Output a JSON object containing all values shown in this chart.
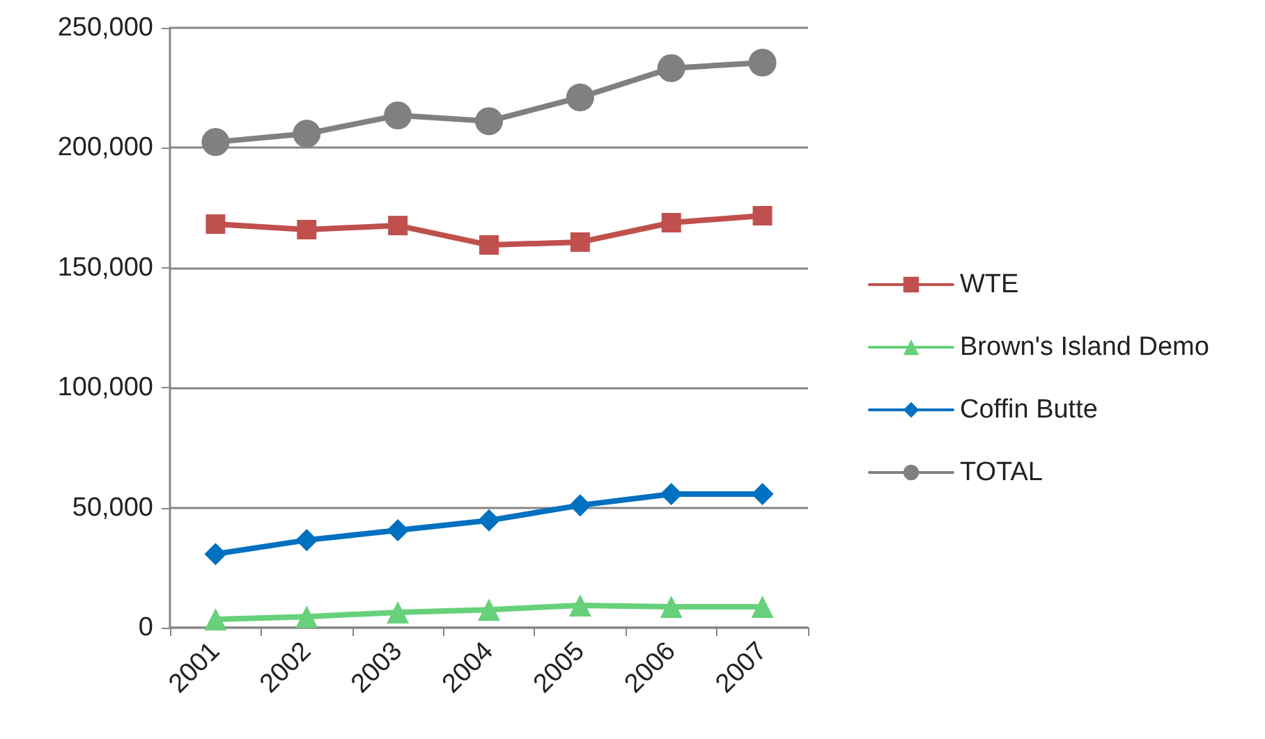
{
  "chart_data": {
    "type": "line",
    "categories": [
      "2001",
      "2002",
      "2003",
      "2004",
      "2005",
      "2006",
      "2007"
    ],
    "series": [
      {
        "name": "WTE",
        "color": "#c0504d",
        "marker": "square",
        "values": [
          168200,
          165900,
          167600,
          159500,
          160700,
          168800,
          171700
        ]
      },
      {
        "name": "Brown's Island Demo",
        "color": "#66d17a",
        "marker": "triangle",
        "values": [
          3500,
          4600,
          6400,
          7500,
          9300,
          8700,
          8700
        ]
      },
      {
        "name": "Coffin Butte",
        "color": "#0070c0",
        "marker": "diamond",
        "values": [
          30700,
          36500,
          40600,
          44700,
          51000,
          55700,
          55700
        ]
      },
      {
        "name": "TOTAL",
        "color": "#808080",
        "marker": "circle",
        "values": [
          202400,
          205900,
          213500,
          211100,
          221000,
          233200,
          235500
        ]
      }
    ],
    "ylim": [
      0,
      250000
    ],
    "yticks": [
      0,
      {
        "value": 50000,
        "label": "50,000"
      },
      {
        "value": 100000,
        "label": "100,000"
      },
      {
        "value": 150000,
        "label": "150,000"
      },
      {
        "value": 200000,
        "label": "200,000"
      },
      {
        "value": 250000,
        "label": "250,000"
      }
    ],
    "grid": "y",
    "legend": "right",
    "line_style": "solid"
  }
}
